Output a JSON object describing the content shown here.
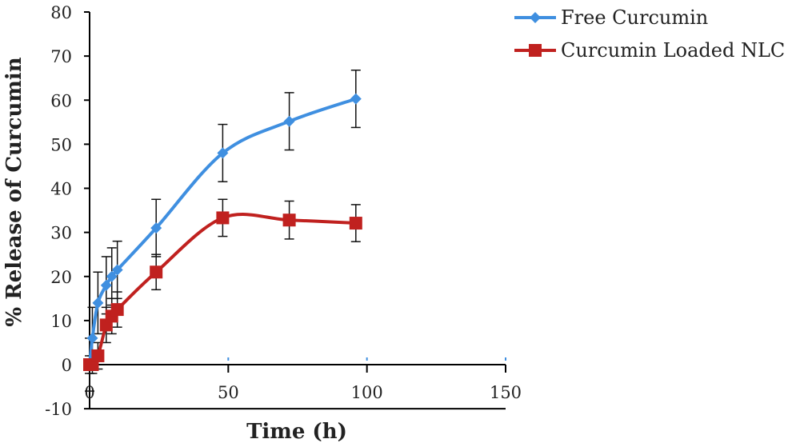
{
  "chart_data": {
    "type": "line",
    "title": "",
    "xlabel": "Time (h)",
    "ylabel": "% Release of Curcumin",
    "xlim": [
      0,
      150
    ],
    "ylim": [
      -10,
      80
    ],
    "x_ticks": [
      "0",
      "50",
      "100",
      "150"
    ],
    "y_ticks": [
      "-10",
      "0",
      "10",
      "20",
      "30",
      "40",
      "50",
      "60",
      "70",
      "80"
    ],
    "grid": false,
    "legend_position": "top-right",
    "series": [
      {
        "name": "Free Curcumin",
        "color": "#3f8fe0",
        "marker": "diamond",
        "x": [
          0,
          1,
          3,
          6,
          8,
          10,
          24,
          48,
          72,
          96
        ],
        "y": [
          0,
          6,
          14,
          18,
          20,
          21.5,
          31,
          48,
          55.2,
          60.3
        ],
        "error": [
          6,
          7,
          7,
          6.5,
          6.5,
          6.5,
          6.5,
          6.5,
          6.5,
          6.5
        ]
      },
      {
        "name": "Curcumin Loaded NLC",
        "color": "#c0211f",
        "marker": "square",
        "x": [
          0,
          1,
          3,
          6,
          8,
          10,
          24,
          48,
          72,
          96
        ],
        "y": [
          0,
          0,
          2,
          9,
          11,
          12.5,
          21,
          33.3,
          32.8,
          32.1
        ],
        "error": [
          2,
          2,
          3,
          4,
          4,
          4,
          4,
          4.2,
          4.3,
          4.2
        ]
      }
    ]
  }
}
